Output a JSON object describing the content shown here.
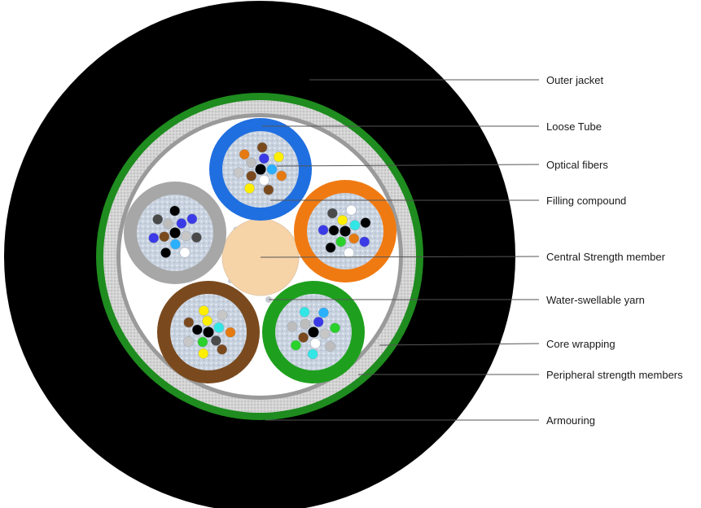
{
  "labels": {
    "outer_jacket": "Outer jacket",
    "loose_tube": "Loose Tube",
    "optical_fibers": "Optical fibers",
    "filling_compound": "Filling compound",
    "central_strength_member": "Central Strength member",
    "water_swellable_yarn": "Water-swellable yarn",
    "core_wrapping": "Core wrapping",
    "peripheral_strength_members": "Peripheral strength members",
    "armouring": "Armouring"
  },
  "colors": {
    "jacket": "#000000",
    "armour": "#1e8c1e",
    "strength_band": "#cfcfcf",
    "core_wrap": "#9a9a9a",
    "core_fill": "#ffffff",
    "central_member": "#f7d3a8",
    "tube_gel": "#c9d3e0",
    "tubes": {
      "blue": "#1f6fe0",
      "orange": "#f07a12",
      "green": "#1ea01e",
      "brown": "#7a4a1e",
      "grey": "#a7a7a7"
    },
    "fibers": [
      "#2ab0ff",
      "#e57a10",
      "#ffffff",
      "#2ad12a",
      "#7a4a1e",
      "#000000",
      "#bdbdbd",
      "#ffee00",
      "#3a3ae6",
      "#33e6e6",
      "#c7c7c7",
      "#4a4a4a"
    ]
  }
}
